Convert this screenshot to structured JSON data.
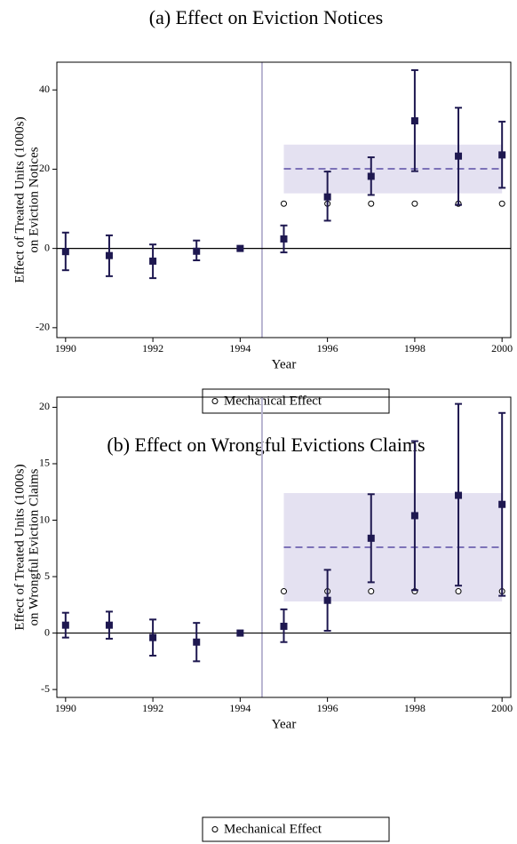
{
  "chart_data": [
    {
      "type": "errorbar",
      "title": "(a) Effect on Eviction Notices",
      "ylabel": [
        "Effect of Treated Units (1000s)",
        "on Eviction Notices"
      ],
      "xlabel": "Year",
      "x": [
        1990,
        1991,
        1992,
        1993,
        1994,
        1995,
        1996,
        1997,
        1998,
        1999,
        2000
      ],
      "values": [
        -0.8,
        -1.8,
        -3.2,
        -0.7,
        0,
        2.4,
        13,
        18.2,
        32.2,
        23.3,
        23.6
      ],
      "lower": [
        -5.5,
        -7,
        -7.5,
        -3,
        null,
        -1,
        7,
        13.5,
        19.5,
        11,
        15.3
      ],
      "upper": [
        4,
        3.3,
        1,
        2,
        null,
        5.8,
        19.4,
        23,
        45,
        35.5,
        32
      ],
      "color": "#1e1850",
      "mechanical": {
        "name": "Mechanical Effect",
        "x": [
          1995,
          1996,
          1997,
          1998,
          1999,
          2000
        ],
        "values": [
          11.3,
          11.3,
          11.3,
          11.3,
          11.3,
          11.3
        ]
      },
      "band": {
        "x": [
          1995,
          2000
        ],
        "lower": 13.9,
        "upper": 26.2,
        "mean": 20.1,
        "color": "#e4e1f1",
        "line_color": "#7d72b8"
      },
      "event_line": 1994.5,
      "event_line_color": "#b8b4d0",
      "xlim": [
        1989.8,
        2000.2
      ],
      "ylim": [
        -22.5,
        47
      ],
      "xticks": [
        1990,
        1992,
        1994,
        1996,
        1998,
        2000
      ],
      "yticks": [
        -20,
        0,
        20,
        40
      ]
    },
    {
      "type": "errorbar",
      "title": "(b) Effect on Wrongful Evictions Claims",
      "ylabel": [
        "Effect of Treated Units (1000s)",
        "on Wrongful Eviction Claims"
      ],
      "xlabel": "Year",
      "x": [
        1990,
        1991,
        1992,
        1993,
        1994,
        1995,
        1996,
        1997,
        1998,
        1999,
        2000
      ],
      "values": [
        0.7,
        0.7,
        -0.4,
        -0.8,
        0,
        0.6,
        2.9,
        8.4,
        10.4,
        12.2,
        11.4
      ],
      "lower": [
        -0.4,
        -0.5,
        -2,
        -2.5,
        null,
        -0.8,
        0.2,
        4.5,
        3.8,
        4.2,
        3.3
      ],
      "upper": [
        1.8,
        1.9,
        1.2,
        0.9,
        null,
        2.1,
        5.6,
        12.3,
        17,
        20.3,
        19.5
      ],
      "color": "#1e1850",
      "mechanical": {
        "name": "Mechanical Effect",
        "x": [
          1995,
          1996,
          1997,
          1998,
          1999,
          2000
        ],
        "values": [
          3.7,
          3.7,
          3.7,
          3.7,
          3.7,
          3.7
        ]
      },
      "band": {
        "x": [
          1995,
          2000
        ],
        "lower": 2.8,
        "upper": 12.4,
        "mean": 7.6,
        "color": "#e4e1f1",
        "line_color": "#7d72b8"
      },
      "event_line": 1994.5,
      "event_line_color": "#b8b4d0",
      "xlim": [
        1989.8,
        2000.2
      ],
      "ylim": [
        -5.7,
        20.9
      ],
      "xticks": [
        1990,
        1992,
        1994,
        1996,
        1998,
        2000
      ],
      "yticks": [
        -5,
        0,
        5,
        10,
        15,
        20
      ]
    }
  ]
}
